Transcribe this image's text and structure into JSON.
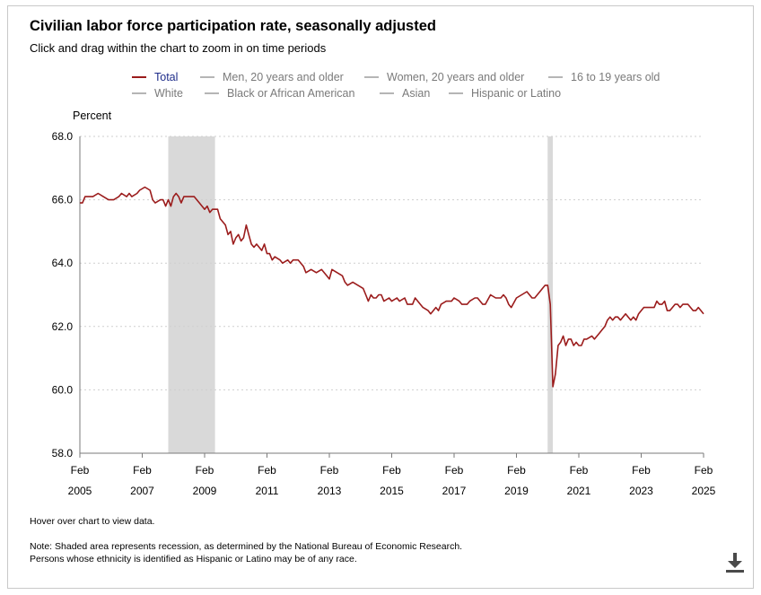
{
  "header": {
    "title": "Civilian labor force participation rate, seasonally adjusted",
    "subtitle": "Click and drag within the chart to zoom in on time periods"
  },
  "legend": [
    {
      "label": "Total",
      "active": true
    },
    {
      "label": "Men, 20 years and older",
      "active": false
    },
    {
      "label": "Women, 20 years and older",
      "active": false
    },
    {
      "label": "16 to 19 years old",
      "active": false
    },
    {
      "label": "White",
      "active": false
    },
    {
      "label": "Black or African American",
      "active": false
    },
    {
      "label": "Asian",
      "active": false
    },
    {
      "label": "Hispanic or Latino",
      "active": false
    }
  ],
  "colors": {
    "series": "#9b1c1c",
    "inactive_swatch": "#b5b5b5",
    "active_label": "#1f2d8a",
    "recession": "#d9d9d9",
    "grid": "#cfcfcf"
  },
  "chart_data": {
    "type": "line",
    "title": "Civilian labor force participation rate, seasonally adjusted",
    "ylabel": "Percent",
    "xlabel": "",
    "ylim": [
      58.0,
      68.0
    ],
    "y_ticks": [
      "58.0",
      "60.0",
      "62.0",
      "64.0",
      "66.0",
      "68.0"
    ],
    "x_range": [
      2005.083,
      2025.083
    ],
    "x_ticks": [
      {
        "month": "Feb",
        "year": "2005",
        "x": 2005.083
      },
      {
        "month": "Feb",
        "year": "2007",
        "x": 2007.083
      },
      {
        "month": "Feb",
        "year": "2009",
        "x": 2009.083
      },
      {
        "month": "Feb",
        "year": "2011",
        "x": 2011.083
      },
      {
        "month": "Feb",
        "year": "2013",
        "x": 2013.083
      },
      {
        "month": "Feb",
        "year": "2015",
        "x": 2015.083
      },
      {
        "month": "Feb",
        "year": "2017",
        "x": 2017.083
      },
      {
        "month": "Feb",
        "year": "2019",
        "x": 2019.083
      },
      {
        "month": "Feb",
        "year": "2021",
        "x": 2021.083
      },
      {
        "month": "Feb",
        "year": "2023",
        "x": 2023.083
      },
      {
        "month": "Feb",
        "year": "2025",
        "x": 2025.083
      }
    ],
    "recessions": [
      {
        "start": 2007.917,
        "end": 2009.417
      },
      {
        "start": 2020.083,
        "end": 2020.25
      }
    ],
    "series": [
      {
        "name": "Total",
        "points": [
          [
            2005.083,
            65.9
          ],
          [
            2005.167,
            65.9
          ],
          [
            2005.25,
            66.1
          ],
          [
            2005.333,
            66.1
          ],
          [
            2005.5,
            66.1
          ],
          [
            2005.667,
            66.2
          ],
          [
            2005.833,
            66.1
          ],
          [
            2006.0,
            66.0
          ],
          [
            2006.167,
            66.0
          ],
          [
            2006.333,
            66.1
          ],
          [
            2006.417,
            66.2
          ],
          [
            2006.583,
            66.1
          ],
          [
            2006.667,
            66.2
          ],
          [
            2006.75,
            66.1
          ],
          [
            2006.917,
            66.2
          ],
          [
            2007.0,
            66.3
          ],
          [
            2007.167,
            66.4
          ],
          [
            2007.333,
            66.3
          ],
          [
            2007.417,
            66.0
          ],
          [
            2007.5,
            65.9
          ],
          [
            2007.667,
            66.0
          ],
          [
            2007.75,
            66.0
          ],
          [
            2007.833,
            65.8
          ],
          [
            2007.917,
            66.0
          ],
          [
            2008.0,
            65.8
          ],
          [
            2008.083,
            66.1
          ],
          [
            2008.167,
            66.2
          ],
          [
            2008.25,
            66.1
          ],
          [
            2008.333,
            65.9
          ],
          [
            2008.417,
            66.1
          ],
          [
            2008.583,
            66.1
          ],
          [
            2008.75,
            66.1
          ],
          [
            2008.833,
            66.0
          ],
          [
            2008.917,
            65.9
          ],
          [
            2009.083,
            65.7
          ],
          [
            2009.167,
            65.8
          ],
          [
            2009.25,
            65.6
          ],
          [
            2009.333,
            65.7
          ],
          [
            2009.5,
            65.7
          ],
          [
            2009.583,
            65.4
          ],
          [
            2009.75,
            65.2
          ],
          [
            2009.833,
            64.9
          ],
          [
            2009.917,
            65.0
          ],
          [
            2010.0,
            64.6
          ],
          [
            2010.083,
            64.8
          ],
          [
            2010.167,
            64.9
          ],
          [
            2010.25,
            64.7
          ],
          [
            2010.333,
            64.8
          ],
          [
            2010.417,
            65.2
          ],
          [
            2010.5,
            64.9
          ],
          [
            2010.583,
            64.6
          ],
          [
            2010.667,
            64.5
          ],
          [
            2010.75,
            64.6
          ],
          [
            2010.917,
            64.4
          ],
          [
            2011.0,
            64.6
          ],
          [
            2011.083,
            64.3
          ],
          [
            2011.167,
            64.3
          ],
          [
            2011.25,
            64.1
          ],
          [
            2011.333,
            64.2
          ],
          [
            2011.5,
            64.1
          ],
          [
            2011.583,
            64.0
          ],
          [
            2011.75,
            64.1
          ],
          [
            2011.833,
            64.0
          ],
          [
            2011.917,
            64.1
          ],
          [
            2012.083,
            64.1
          ],
          [
            2012.25,
            63.9
          ],
          [
            2012.333,
            63.7
          ],
          [
            2012.5,
            63.8
          ],
          [
            2012.667,
            63.7
          ],
          [
            2012.833,
            63.8
          ],
          [
            2013.0,
            63.6
          ],
          [
            2013.083,
            63.5
          ],
          [
            2013.167,
            63.8
          ],
          [
            2013.333,
            63.7
          ],
          [
            2013.5,
            63.6
          ],
          [
            2013.583,
            63.4
          ],
          [
            2013.667,
            63.3
          ],
          [
            2013.833,
            63.4
          ],
          [
            2014.0,
            63.3
          ],
          [
            2014.167,
            63.2
          ],
          [
            2014.25,
            63.0
          ],
          [
            2014.333,
            62.8
          ],
          [
            2014.417,
            63.0
          ],
          [
            2014.5,
            62.9
          ],
          [
            2014.583,
            62.9
          ],
          [
            2014.667,
            63.0
          ],
          [
            2014.75,
            63.0
          ],
          [
            2014.833,
            62.8
          ],
          [
            2015.0,
            62.9
          ],
          [
            2015.083,
            62.8
          ],
          [
            2015.25,
            62.9
          ],
          [
            2015.333,
            62.8
          ],
          [
            2015.5,
            62.9
          ],
          [
            2015.583,
            62.7
          ],
          [
            2015.75,
            62.7
          ],
          [
            2015.833,
            62.9
          ],
          [
            2016.0,
            62.7
          ],
          [
            2016.083,
            62.6
          ],
          [
            2016.25,
            62.5
          ],
          [
            2016.333,
            62.4
          ],
          [
            2016.5,
            62.6
          ],
          [
            2016.583,
            62.5
          ],
          [
            2016.667,
            62.7
          ],
          [
            2016.833,
            62.8
          ],
          [
            2017.0,
            62.8
          ],
          [
            2017.083,
            62.9
          ],
          [
            2017.25,
            62.8
          ],
          [
            2017.333,
            62.7
          ],
          [
            2017.5,
            62.7
          ],
          [
            2017.583,
            62.8
          ],
          [
            2017.75,
            62.9
          ],
          [
            2017.833,
            62.9
          ],
          [
            2018.0,
            62.7
          ],
          [
            2018.083,
            62.7
          ],
          [
            2018.25,
            63.0
          ],
          [
            2018.417,
            62.9
          ],
          [
            2018.583,
            62.9
          ],
          [
            2018.667,
            63.0
          ],
          [
            2018.75,
            62.9
          ],
          [
            2018.833,
            62.7
          ],
          [
            2018.917,
            62.6
          ],
          [
            2019.083,
            62.9
          ],
          [
            2019.25,
            63.0
          ],
          [
            2019.417,
            63.1
          ],
          [
            2019.583,
            62.9
          ],
          [
            2019.667,
            62.9
          ],
          [
            2019.75,
            63.0
          ],
          [
            2019.833,
            63.1
          ],
          [
            2019.917,
            63.2
          ],
          [
            2020.0,
            63.3
          ],
          [
            2020.083,
            63.3
          ],
          [
            2020.167,
            62.7
          ],
          [
            2020.25,
            60.1
          ],
          [
            2020.333,
            60.5
          ],
          [
            2020.417,
            61.4
          ],
          [
            2020.5,
            61.5
          ],
          [
            2020.583,
            61.7
          ],
          [
            2020.667,
            61.4
          ],
          [
            2020.75,
            61.6
          ],
          [
            2020.833,
            61.6
          ],
          [
            2020.917,
            61.4
          ],
          [
            2021.0,
            61.5
          ],
          [
            2021.083,
            61.4
          ],
          [
            2021.167,
            61.4
          ],
          [
            2021.25,
            61.6
          ],
          [
            2021.333,
            61.6
          ],
          [
            2021.5,
            61.7
          ],
          [
            2021.583,
            61.6
          ],
          [
            2021.667,
            61.7
          ],
          [
            2021.75,
            61.8
          ],
          [
            2021.833,
            61.9
          ],
          [
            2021.917,
            62.0
          ],
          [
            2022.0,
            62.2
          ],
          [
            2022.083,
            62.3
          ],
          [
            2022.167,
            62.2
          ],
          [
            2022.25,
            62.3
          ],
          [
            2022.333,
            62.3
          ],
          [
            2022.417,
            62.2
          ],
          [
            2022.5,
            62.3
          ],
          [
            2022.583,
            62.4
          ],
          [
            2022.667,
            62.3
          ],
          [
            2022.75,
            62.2
          ],
          [
            2022.833,
            62.3
          ],
          [
            2022.917,
            62.2
          ],
          [
            2023.0,
            62.4
          ],
          [
            2023.083,
            62.5
          ],
          [
            2023.167,
            62.6
          ],
          [
            2023.25,
            62.6
          ],
          [
            2023.333,
            62.6
          ],
          [
            2023.417,
            62.6
          ],
          [
            2023.5,
            62.6
          ],
          [
            2023.583,
            62.8
          ],
          [
            2023.667,
            62.7
          ],
          [
            2023.75,
            62.7
          ],
          [
            2023.833,
            62.8
          ],
          [
            2023.917,
            62.5
          ],
          [
            2024.0,
            62.5
          ],
          [
            2024.083,
            62.6
          ],
          [
            2024.167,
            62.7
          ],
          [
            2024.25,
            62.7
          ],
          [
            2024.333,
            62.6
          ],
          [
            2024.417,
            62.7
          ],
          [
            2024.5,
            62.7
          ],
          [
            2024.583,
            62.7
          ],
          [
            2024.667,
            62.6
          ],
          [
            2024.75,
            62.5
          ],
          [
            2024.833,
            62.5
          ],
          [
            2024.917,
            62.6
          ],
          [
            2025.0,
            62.5
          ],
          [
            2025.083,
            62.4
          ]
        ]
      }
    ]
  },
  "footer": {
    "hover_hint": "Hover over chart to view data.",
    "note_1": "Note: Shaded area represents recession, as determined by the National Bureau of Economic Research.",
    "note_2": "Persons whose ethnicity is identified as Hispanic or Latino may be of any race.",
    "download_icon": "download-icon"
  }
}
